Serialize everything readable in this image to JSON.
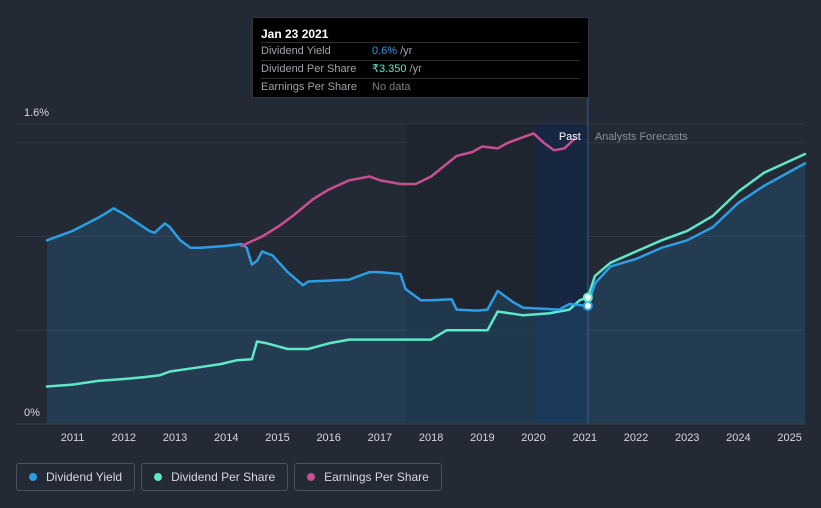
{
  "tooltip": {
    "date": "Jan 23 2021",
    "rows": [
      {
        "label": "Dividend Yield",
        "value": "0.6%",
        "unit": "/yr"
      },
      {
        "label": "Dividend Per Share",
        "value": "₹3.350",
        "unit": "/yr"
      },
      {
        "label": "Earnings Per Share",
        "value": "No data",
        "unit": ""
      }
    ]
  },
  "legend": [
    {
      "label": "Dividend Yield",
      "color": "#2b9ee4"
    },
    {
      "label": "Dividend Per Share",
      "color": "#5ee8c8"
    },
    {
      "label": "Earnings Per Share",
      "color": "#c94f92"
    }
  ],
  "chart_data": {
    "type": "line",
    "title": "",
    "xlabel": "",
    "ylabel": "",
    "x_range": [
      2010.5,
      2025.3
    ],
    "ylim": [
      0,
      1.6
    ],
    "y_ticks": [
      {
        "value": 1.6,
        "label": "1.6%"
      },
      {
        "value": 0,
        "label": "0%"
      }
    ],
    "x_ticks": [
      "2011",
      "2012",
      "2013",
      "2014",
      "2015",
      "2016",
      "2017",
      "2018",
      "2019",
      "2020",
      "2021",
      "2022",
      "2023",
      "2024",
      "2025"
    ],
    "past_label": "Past",
    "forecast_label": "Analysts Forecasts",
    "past_boundary": 2021.06,
    "highlight_start": 2020.05,
    "marker_date": 2021.06,
    "series": [
      {
        "name": "Dividend Yield",
        "color": "#2b9ee4",
        "points": [
          [
            2010.5,
            0.98
          ],
          [
            2011.0,
            1.03
          ],
          [
            2011.5,
            1.1
          ],
          [
            2011.8,
            1.15
          ],
          [
            2012.0,
            1.12
          ],
          [
            2012.5,
            1.03
          ],
          [
            2012.6,
            1.02
          ],
          [
            2012.8,
            1.07
          ],
          [
            2012.9,
            1.05
          ],
          [
            2013.1,
            0.98
          ],
          [
            2013.3,
            0.94
          ],
          [
            2013.5,
            0.94
          ],
          [
            2014.0,
            0.95
          ],
          [
            2014.3,
            0.96
          ],
          [
            2014.4,
            0.94
          ],
          [
            2014.5,
            0.85
          ],
          [
            2014.6,
            0.87
          ],
          [
            2014.7,
            0.92
          ],
          [
            2014.9,
            0.9
          ],
          [
            2015.2,
            0.81
          ],
          [
            2015.5,
            0.74
          ],
          [
            2015.6,
            0.76
          ],
          [
            2016.0,
            0.765
          ],
          [
            2016.4,
            0.77
          ],
          [
            2016.8,
            0.81
          ],
          [
            2017.0,
            0.81
          ],
          [
            2017.4,
            0.8
          ],
          [
            2017.5,
            0.72
          ],
          [
            2017.8,
            0.66
          ],
          [
            2018.0,
            0.66
          ],
          [
            2018.4,
            0.665
          ],
          [
            2018.5,
            0.61
          ],
          [
            2018.9,
            0.605
          ],
          [
            2019.1,
            0.61
          ],
          [
            2019.3,
            0.71
          ],
          [
            2019.6,
            0.65
          ],
          [
            2019.8,
            0.62
          ],
          [
            2020.5,
            0.61
          ],
          [
            2020.7,
            0.64
          ],
          [
            2021.06,
            0.63
          ],
          [
            2021.2,
            0.75
          ],
          [
            2021.5,
            0.84
          ],
          [
            2022.0,
            0.88
          ],
          [
            2022.5,
            0.94
          ],
          [
            2023.0,
            0.98
          ],
          [
            2023.5,
            1.05
          ],
          [
            2024.0,
            1.18
          ],
          [
            2024.5,
            1.27
          ],
          [
            2025.3,
            1.39
          ]
        ]
      },
      {
        "name": "Dividend Per Share",
        "color": "#5ee8c8",
        "points": [
          [
            2010.5,
            0.2
          ],
          [
            2011.0,
            0.21
          ],
          [
            2011.5,
            0.23
          ],
          [
            2012.0,
            0.24
          ],
          [
            2012.4,
            0.25
          ],
          [
            2012.7,
            0.26
          ],
          [
            2012.9,
            0.28
          ],
          [
            2013.4,
            0.3
          ],
          [
            2013.9,
            0.32
          ],
          [
            2014.2,
            0.34
          ],
          [
            2014.5,
            0.345
          ],
          [
            2014.6,
            0.44
          ],
          [
            2014.8,
            0.43
          ],
          [
            2015.2,
            0.4
          ],
          [
            2015.6,
            0.4
          ],
          [
            2016.0,
            0.43
          ],
          [
            2016.4,
            0.45
          ],
          [
            2017.0,
            0.45
          ],
          [
            2017.8,
            0.45
          ],
          [
            2018.0,
            0.45
          ],
          [
            2018.3,
            0.5
          ],
          [
            2018.7,
            0.5
          ],
          [
            2019.1,
            0.5
          ],
          [
            2019.3,
            0.6
          ],
          [
            2019.8,
            0.58
          ],
          [
            2020.3,
            0.59
          ],
          [
            2020.7,
            0.61
          ],
          [
            2020.9,
            0.66
          ],
          [
            2021.06,
            0.675
          ],
          [
            2021.2,
            0.79
          ],
          [
            2021.5,
            0.86
          ],
          [
            2022.0,
            0.92
          ],
          [
            2022.5,
            0.98
          ],
          [
            2023.0,
            1.03
          ],
          [
            2023.5,
            1.11
          ],
          [
            2024.0,
            1.24
          ],
          [
            2024.5,
            1.34
          ],
          [
            2025.3,
            1.44
          ]
        ]
      },
      {
        "name": "Earnings Per Share",
        "color": "#c94f92",
        "points": [
          [
            2014.3,
            0.95
          ],
          [
            2014.7,
            1.0
          ],
          [
            2015.0,
            1.05
          ],
          [
            2015.3,
            1.11
          ],
          [
            2015.7,
            1.2
          ],
          [
            2016.0,
            1.25
          ],
          [
            2016.4,
            1.3
          ],
          [
            2016.8,
            1.32
          ],
          [
            2017.0,
            1.3
          ],
          [
            2017.4,
            1.28
          ],
          [
            2017.7,
            1.28
          ],
          [
            2018.0,
            1.32
          ],
          [
            2018.5,
            1.43
          ],
          [
            2018.8,
            1.45
          ],
          [
            2019.0,
            1.48
          ],
          [
            2019.3,
            1.47
          ],
          [
            2019.5,
            1.5
          ],
          [
            2019.8,
            1.53
          ],
          [
            2020.0,
            1.55
          ],
          [
            2020.2,
            1.5
          ],
          [
            2020.4,
            1.46
          ],
          [
            2020.6,
            1.47
          ],
          [
            2020.8,
            1.52
          ]
        ]
      }
    ]
  }
}
